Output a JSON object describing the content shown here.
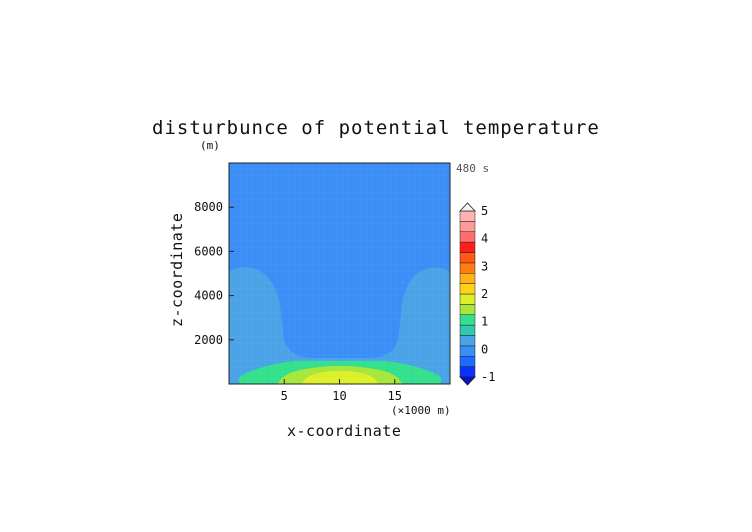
{
  "chart_data": {
    "type": "heatmap",
    "title": "disturbunce of potential temperature",
    "y_unit_label": "(m)",
    "x_unit_label": "(×1000 m)",
    "time_label": "480 s",
    "xlabel": "x-coordinate",
    "ylabel": "z-coordinate",
    "xlim": [
      0,
      20
    ],
    "ylim": [
      0,
      10000
    ],
    "xticks": [
      5,
      10,
      15
    ],
    "yticks": [
      2000,
      4000,
      6000,
      8000
    ],
    "colorbar": {
      "min": -1,
      "max": 5,
      "step": 0.5,
      "tick_labels": [
        "-1",
        "0",
        "1",
        "2",
        "3",
        "4",
        "5"
      ],
      "colors": [
        "#0a32ff",
        "#1e6bff",
        "#3a8ef5",
        "#4aa3e6",
        "#2ec9b0",
        "#33e08c",
        "#a8e63c",
        "#dcf02a",
        "#ffd21a",
        "#ffb214",
        "#ff7d14",
        "#ff5a14",
        "#ff1e1e",
        "#ff6e6e",
        "#ff9a9a",
        "#ffb3b3"
      ]
    },
    "field_description_levels": [
      {
        "level": "0.0 to 0.5",
        "region": "upper layer, z above ~1300 m between x=4.5 and x=15.5, and above ~5000 m elsewhere"
      },
      {
        "level": "0.5 to 1.0",
        "region": "side columns near domain edges up to ~5000 m and band above surface"
      },
      {
        "level": "1.0 to 1.5",
        "region": "surface band x=1 to x=19, z up to ~600 m"
      },
      {
        "level": "1.5 to 2.0",
        "region": "surface lens x=5 to x=15, z up to ~400 m"
      },
      {
        "level": "2.0 to 2.5",
        "region": "surface core x=7 to x=13, z up to ~250 m"
      }
    ]
  }
}
